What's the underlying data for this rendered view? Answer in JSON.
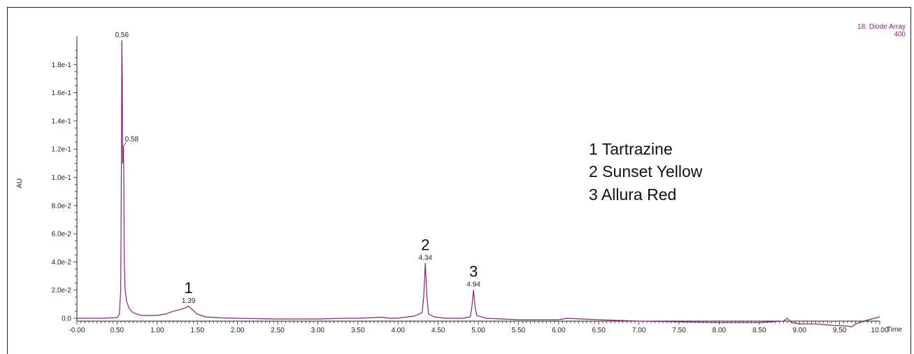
{
  "chart_data": {
    "type": "line",
    "xlabel": "Time",
    "ylabel": "AU",
    "xlim": [
      0.0,
      10.0
    ],
    "ylim": [
      -0.002,
      0.198
    ],
    "xticks": [
      "-0.00",
      "0.50",
      "1.00",
      "1.50",
      "2.00",
      "2.50",
      "3.00",
      "3.50",
      "4.00",
      "4.50",
      "5.00",
      "5.50",
      "6.00",
      "6.50",
      "7.00",
      "7.50",
      "8.00",
      "8.50",
      "9.00",
      "9.50",
      "10.00"
    ],
    "yticks": [
      {
        "value": 0.0,
        "label": "0.0"
      },
      {
        "value": 0.02,
        "label": "2.0e-2"
      },
      {
        "value": 0.04,
        "label": "4.0e-2"
      },
      {
        "value": 0.06,
        "label": "6.0e-2"
      },
      {
        "value": 0.08,
        "label": "8.0e-2"
      },
      {
        "value": 0.1,
        "label": "1.0e-1"
      },
      {
        "value": 0.12,
        "label": "1.2e-1"
      },
      {
        "value": 0.14,
        "label": "1.4e-1"
      },
      {
        "value": 0.16,
        "label": "1.6e-1"
      },
      {
        "value": 0.18,
        "label": "1.8e-1"
      }
    ],
    "channel": [
      "18: Diode Array",
      "400"
    ],
    "line_color": "#7a2a6e",
    "series": [
      {
        "x": [
          0.0,
          0.3,
          0.5,
          0.53,
          0.545,
          0.55,
          0.56,
          0.565,
          0.57,
          0.58,
          0.585,
          0.59,
          0.6,
          0.62,
          0.65,
          0.7,
          0.8,
          0.9,
          1.0,
          1.1,
          1.2,
          1.27,
          1.33,
          1.39,
          1.44,
          1.5,
          1.6,
          1.8,
          2.0,
          2.5,
          3.0,
          3.3,
          3.5,
          3.8,
          3.9,
          4.0,
          4.2,
          4.3,
          4.32,
          4.34,
          4.36,
          4.38,
          4.45,
          4.6,
          4.8,
          4.9,
          4.92,
          4.94,
          4.96,
          4.98,
          5.1,
          5.5,
          6.0,
          6.1,
          6.5,
          7.0,
          7.5,
          8.0,
          8.5,
          8.8,
          8.85,
          8.9,
          9.0,
          9.2,
          9.4,
          9.6,
          9.65,
          9.7,
          9.8,
          10.0
        ],
        "y": [
          0.0,
          0.0,
          0.0005,
          0.003,
          0.02,
          0.06,
          0.197,
          0.17,
          0.11,
          0.122,
          0.09,
          0.04,
          0.02,
          0.012,
          0.007,
          0.004,
          0.002,
          0.002,
          0.002,
          0.003,
          0.005,
          0.006,
          0.007,
          0.0085,
          0.006,
          0.003,
          0.001,
          0.0003,
          0.0,
          -0.0005,
          -0.0005,
          0.0,
          0.0,
          0.0008,
          0.0,
          0.0002,
          0.0015,
          0.004,
          0.015,
          0.039,
          0.015,
          0.003,
          0.001,
          0.0,
          0.0,
          0.001,
          0.008,
          0.02,
          0.008,
          0.002,
          0.0,
          -0.001,
          -0.001,
          0.0,
          -0.001,
          -0.002,
          -0.0025,
          -0.003,
          -0.003,
          -0.002,
          0.0,
          -0.003,
          -0.004,
          -0.004,
          -0.005,
          -0.0055,
          -0.006,
          -0.004,
          -0.002,
          0.001
        ]
      }
    ],
    "peaks": [
      {
        "x": 0.56,
        "y": 0.197,
        "label": "0.56",
        "number": ""
      },
      {
        "x": 0.58,
        "y": 0.122,
        "label": "0.58",
        "number": ""
      },
      {
        "x": 1.39,
        "y": 0.0085,
        "label": "1.39",
        "number": "1"
      },
      {
        "x": 4.34,
        "y": 0.039,
        "label": "4.34",
        "number": "2"
      },
      {
        "x": 4.94,
        "y": 0.02,
        "label": "4.94",
        "number": "3"
      }
    ],
    "legend": [
      "1 Tartrazine",
      "2 Sunset Yellow",
      "3 Allura Red"
    ]
  }
}
